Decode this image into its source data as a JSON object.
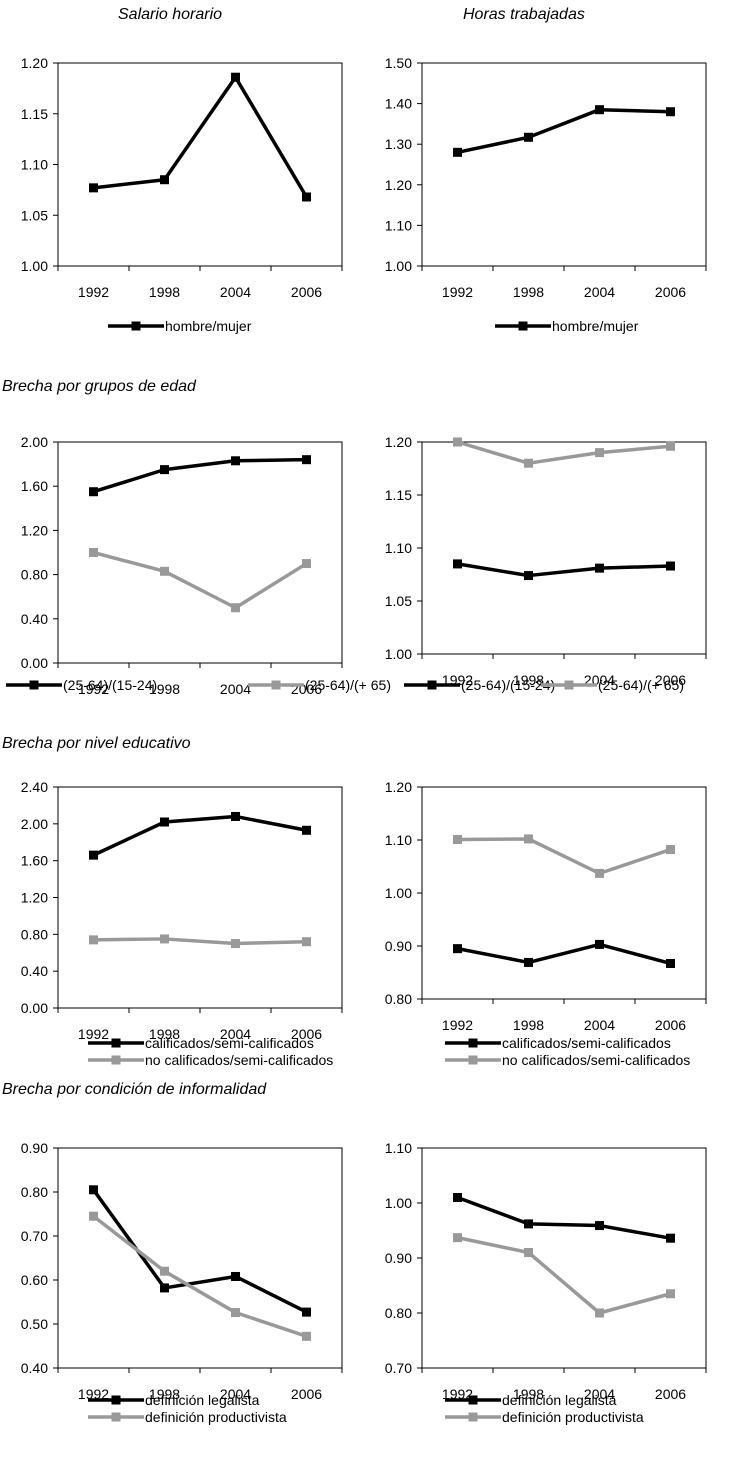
{
  "header": {
    "left": "Salario horario",
    "right": "Horas trabajadas"
  },
  "sections": {
    "age": "Brecha por grupos de edad",
    "education": "Brecha por nivel educativo",
    "informality": "Brecha por condición de informalidad"
  },
  "colors": {
    "black": "#000000",
    "gray": "#999999"
  },
  "chart_data": [
    {
      "type": "line",
      "group": "sex",
      "panel": "salario-horario",
      "categories": [
        "1992",
        "1998",
        "2004",
        "2006"
      ],
      "ylim": [
        1.0,
        1.2
      ],
      "yticks": [
        "1.00",
        "1.05",
        "1.10",
        "1.15",
        "1.20"
      ],
      "series": [
        {
          "name": "hombre/mujer",
          "color": "#000000",
          "values": [
            1.077,
            1.085,
            1.186,
            1.068
          ]
        }
      ],
      "legend": "bottom",
      "grid": false
    },
    {
      "type": "line",
      "group": "sex",
      "panel": "horas-trabajadas",
      "categories": [
        "1992",
        "1998",
        "2004",
        "2006"
      ],
      "ylim": [
        1.0,
        1.5
      ],
      "yticks": [
        "1.00",
        "1.10",
        "1.20",
        "1.30",
        "1.40",
        "1.50"
      ],
      "series": [
        {
          "name": "hombre/mujer",
          "color": "#000000",
          "values": [
            1.28,
            1.317,
            1.385,
            1.38
          ]
        }
      ],
      "legend": "bottom",
      "grid": false
    },
    {
      "type": "line",
      "group": "age",
      "panel": "salario-horario",
      "categories": [
        "1992",
        "1998",
        "2004",
        "2006"
      ],
      "ylim": [
        0.0,
        2.0
      ],
      "yticks": [
        "0.00",
        "0.40",
        "0.80",
        "1.20",
        "1.60",
        "2.00"
      ],
      "series": [
        {
          "name": "(25-64)/(15-24)",
          "color": "#000000",
          "values": [
            1.55,
            1.75,
            1.83,
            1.84
          ]
        },
        {
          "name": "(25-64)/(+ 65)",
          "color": "#999999",
          "values": [
            1.0,
            0.83,
            0.5,
            0.9
          ]
        }
      ],
      "legend": "bottom-row",
      "grid": false
    },
    {
      "type": "line",
      "group": "age",
      "panel": "horas-trabajadas",
      "categories": [
        "1992",
        "1998",
        "2004",
        "2006"
      ],
      "ylim": [
        1.0,
        1.2
      ],
      "yticks": [
        "1.00",
        "1.05",
        "1.10",
        "1.15",
        "1.20"
      ],
      "series": [
        {
          "name": "(25-64)/(15-24)",
          "color": "#000000",
          "values": [
            1.085,
            1.074,
            1.081,
            1.083
          ]
        },
        {
          "name": "(25-64)/(+ 65)",
          "color": "#999999",
          "values": [
            1.2,
            1.18,
            1.19,
            1.196
          ]
        }
      ],
      "legend": "bottom-row",
      "grid": false
    },
    {
      "type": "line",
      "group": "education",
      "panel": "salario-horario",
      "categories": [
        "1992",
        "1998",
        "2004",
        "2006"
      ],
      "ylim": [
        0.0,
        2.4
      ],
      "yticks": [
        "0.00",
        "0.40",
        "0.80",
        "1.20",
        "1.60",
        "2.00",
        "2.40"
      ],
      "series": [
        {
          "name": "calificados/semi-calificados",
          "color": "#000000",
          "values": [
            1.66,
            2.02,
            2.08,
            1.93
          ]
        },
        {
          "name": "no calificados/semi-calificados",
          "color": "#999999",
          "values": [
            0.74,
            0.75,
            0.7,
            0.72
          ]
        }
      ],
      "legend": "bottom-stack",
      "grid": false
    },
    {
      "type": "line",
      "group": "education",
      "panel": "horas-trabajadas",
      "categories": [
        "1992",
        "1998",
        "2004",
        "2006"
      ],
      "ylim": [
        0.8,
        1.2
      ],
      "yticks": [
        "0.80",
        "0.90",
        "1.00",
        "1.10",
        "1.20"
      ],
      "series": [
        {
          "name": "calificados/semi-calificados",
          "color": "#000000",
          "values": [
            0.895,
            0.869,
            0.903,
            0.867
          ]
        },
        {
          "name": "no calificados/semi-calificados",
          "color": "#999999",
          "values": [
            1.101,
            1.102,
            1.037,
            1.082
          ]
        }
      ],
      "legend": "bottom-stack",
      "grid": false
    },
    {
      "type": "line",
      "group": "informality",
      "panel": "salario-horario",
      "categories": [
        "1992",
        "1998",
        "2004",
        "2006"
      ],
      "ylim": [
        0.4,
        0.9
      ],
      "yticks": [
        "0.40",
        "0.50",
        "0.60",
        "0.70",
        "0.80",
        "0.90"
      ],
      "series": [
        {
          "name": "definición legalista",
          "color": "#000000",
          "values": [
            0.805,
            0.582,
            0.608,
            0.527
          ]
        },
        {
          "name": "definición productivista",
          "color": "#999999",
          "values": [
            0.745,
            0.62,
            0.526,
            0.472
          ]
        }
      ],
      "legend": "bottom-stack",
      "grid": false
    },
    {
      "type": "line",
      "group": "informality",
      "panel": "horas-trabajadas",
      "categories": [
        "1992",
        "1998",
        "2004",
        "2006"
      ],
      "ylim": [
        0.7,
        1.1
      ],
      "yticks": [
        "0.70",
        "0.80",
        "0.90",
        "1.00",
        "1.10"
      ],
      "series": [
        {
          "name": "definición legalista",
          "color": "#000000",
          "values": [
            1.01,
            0.962,
            0.959,
            0.936
          ]
        },
        {
          "name": "definición productivista",
          "color": "#999999",
          "values": [
            0.937,
            0.91,
            0.8,
            0.835
          ]
        }
      ],
      "legend": "bottom-stack",
      "grid": false
    }
  ]
}
